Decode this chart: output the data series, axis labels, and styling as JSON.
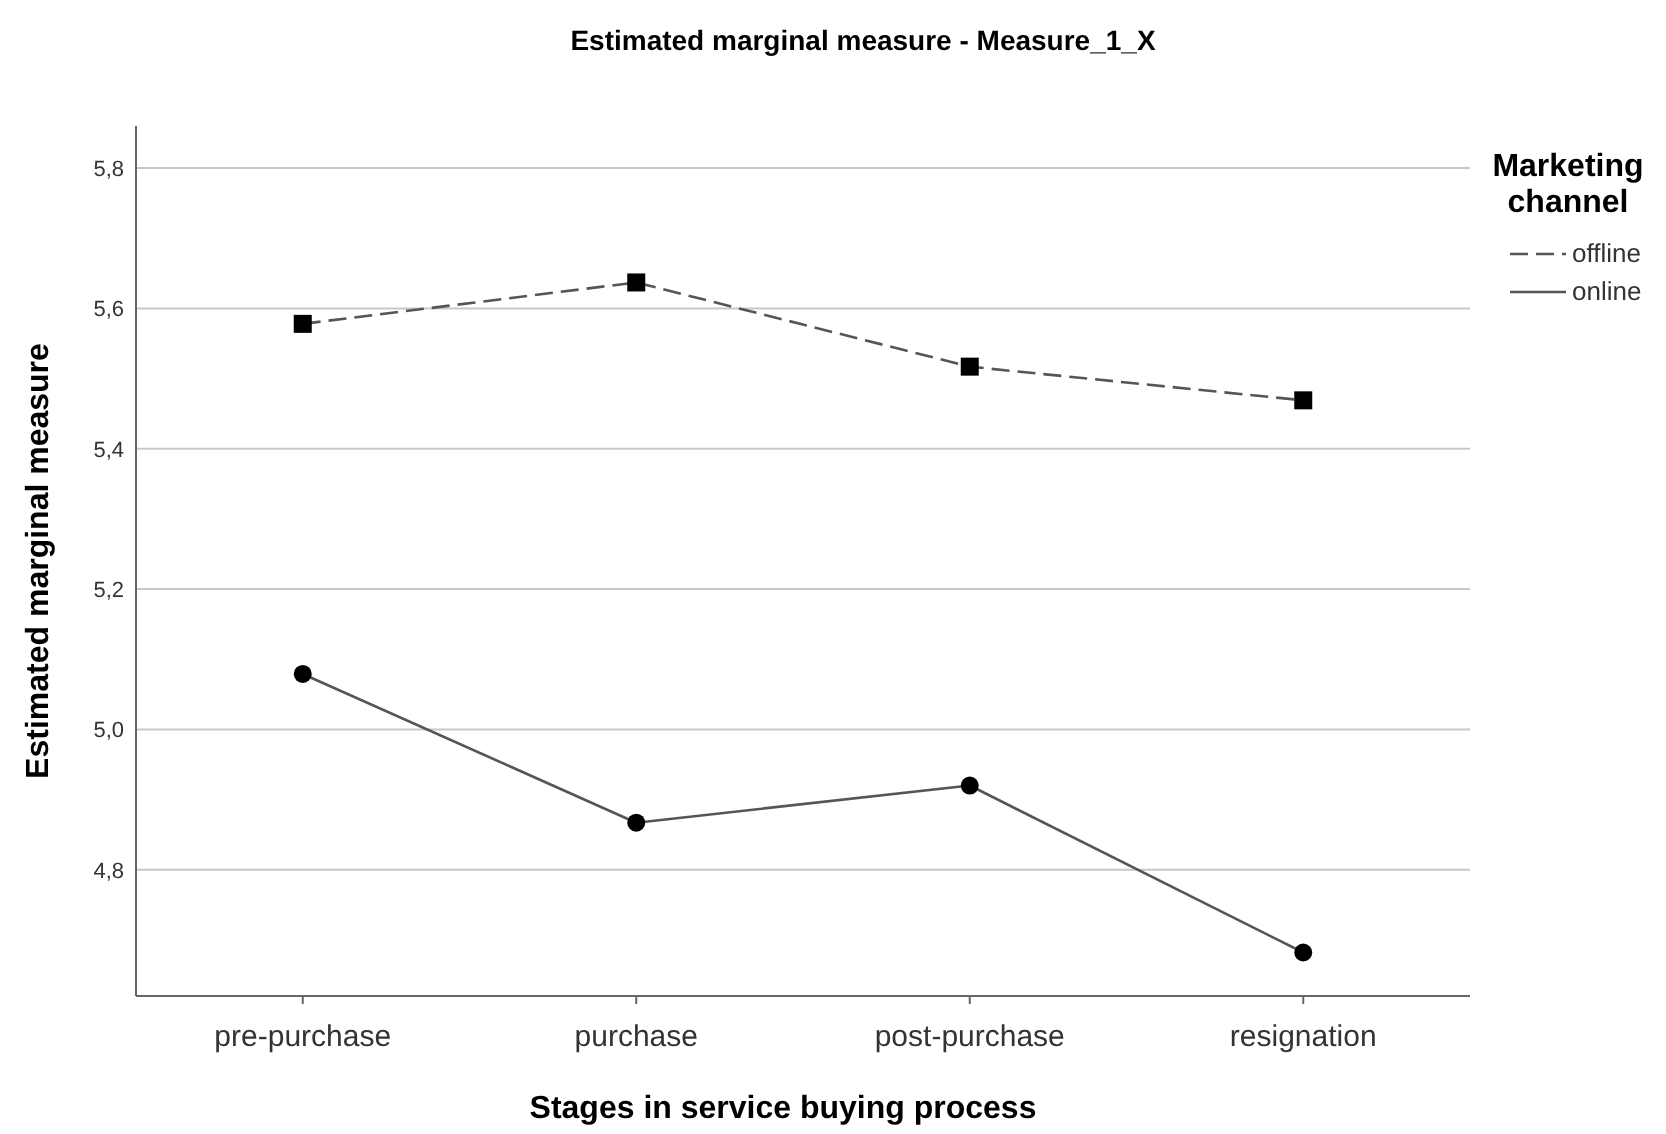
{
  "chart_data": {
    "type": "line",
    "title": "Estimated marginal measure - Measure_1_X",
    "xlabel": "Stages in service buying process",
    "ylabel": "Estimated marginal measure",
    "legend_title": "Marketing channel",
    "categories": [
      "pre-purchase",
      "purchase",
      "post-purchase",
      "resignation"
    ],
    "series": [
      {
        "name": "offline",
        "color": "#000000",
        "marker": "square",
        "line_style": "dashed",
        "values": [
          5.578,
          5.637,
          5.517,
          5.469
        ]
      },
      {
        "name": "online",
        "color": "#000000",
        "marker": "circle",
        "line_style": "solid",
        "values": [
          5.079,
          4.867,
          4.92,
          4.682
        ]
      }
    ],
    "ylim": [
      4.62,
      5.86
    ],
    "yticks": [
      {
        "value": 4.8,
        "label": "4,8"
      },
      {
        "value": 5.0,
        "label": "5,0"
      },
      {
        "value": 5.2,
        "label": "5,2"
      },
      {
        "value": 5.4,
        "label": "5,4"
      },
      {
        "value": 5.6,
        "label": "5,6"
      },
      {
        "value": 5.8,
        "label": "5,8"
      }
    ],
    "grid": "y",
    "legend": "top right"
  }
}
